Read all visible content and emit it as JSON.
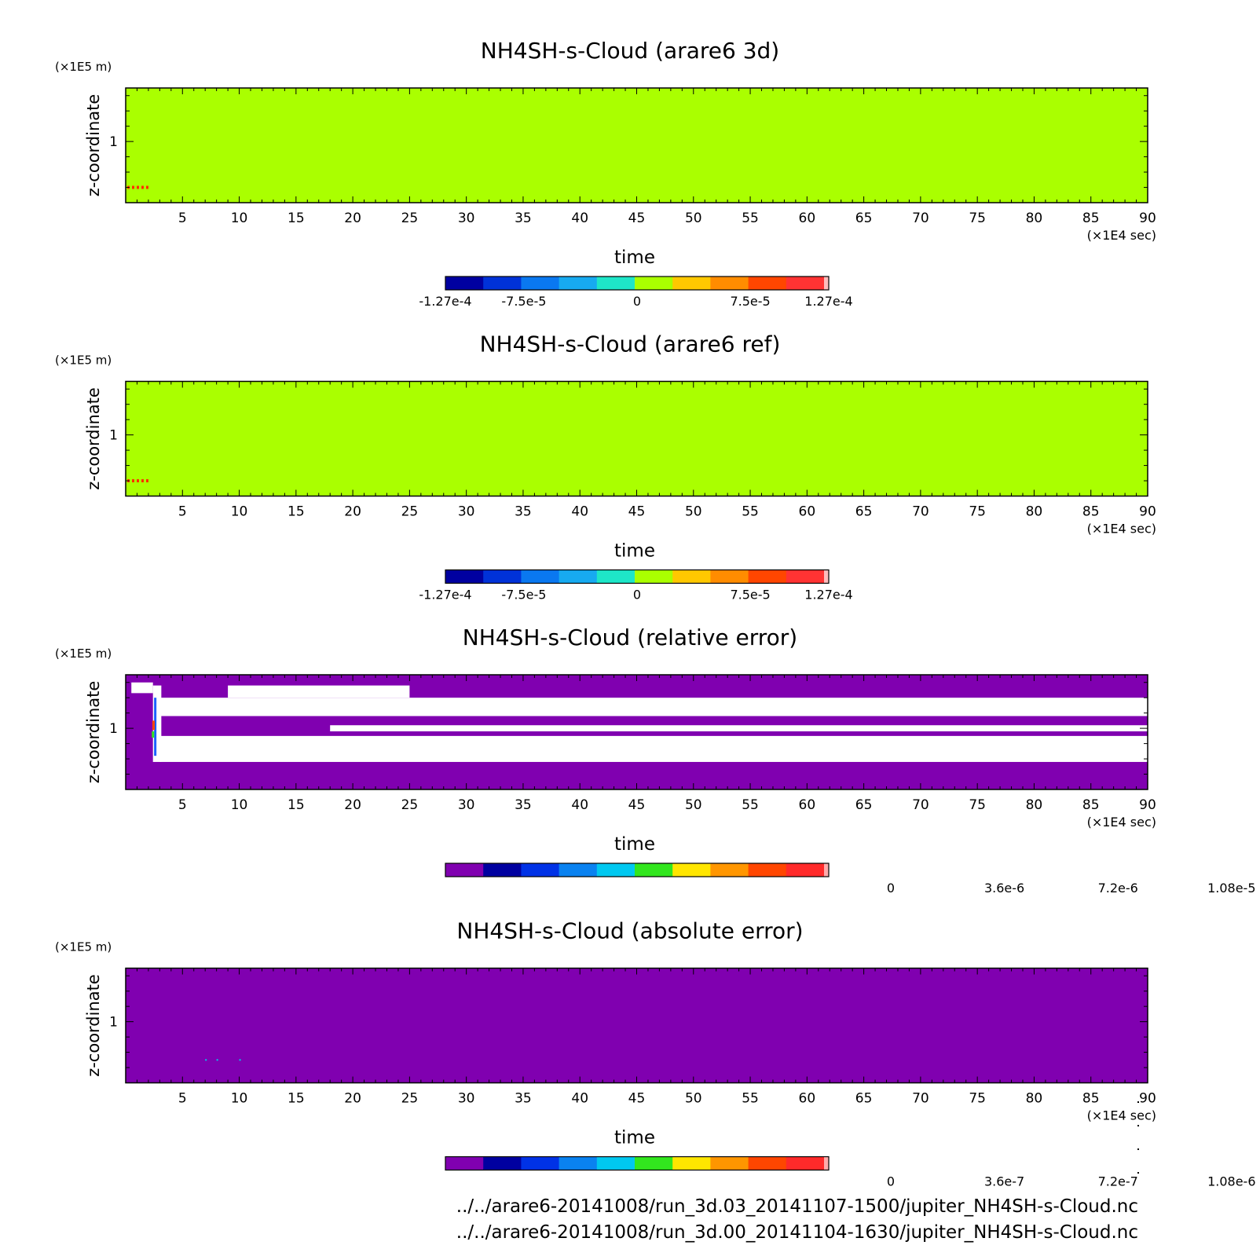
{
  "panels": [
    {
      "title": "NH4SH-s-Cloud (arare6 3d)",
      "y_unit": "(×1E5 m)",
      "y_label": "z-coordinate",
      "y_ticks": [
        "1"
      ],
      "x_label": "time",
      "x_unit": "(×1E4 sec)",
      "background": "#aaff00",
      "colorbar": {
        "colors": [
          "#0000a0",
          "#0032d8",
          "#0a78f0",
          "#17aaf0",
          "#1ee6c8",
          "#aaff00",
          "#ffc800",
          "#ff8c00",
          "#ff4600",
          "#ff3333"
        ],
        "end_color": "#ffbbbb",
        "labels": [
          "-1.27e-4",
          "-7.5e-5",
          "0",
          "7.5e-5",
          "1.27e-4"
        ]
      }
    },
    {
      "title": "NH4SH-s-Cloud (arare6 ref)",
      "y_unit": "(×1E5 m)",
      "y_label": "z-coordinate",
      "y_ticks": [
        "1"
      ],
      "x_label": "time",
      "x_unit": "(×1E4 sec)",
      "background": "#aaff00",
      "colorbar": {
        "colors": [
          "#0000a0",
          "#0032d8",
          "#0a78f0",
          "#17aaf0",
          "#1ee6c8",
          "#aaff00",
          "#ffc800",
          "#ff8c00",
          "#ff4600",
          "#ff3333"
        ],
        "end_color": "#ffbbbb",
        "labels": [
          "-1.27e-4",
          "-7.5e-5",
          "0",
          "7.5e-5",
          "1.27e-4"
        ]
      }
    },
    {
      "title": "NH4SH-s-Cloud (relative error)",
      "y_unit": "(×1E5 m)",
      "y_label": "z-coordinate",
      "y_ticks": [
        "1"
      ],
      "x_label": "time",
      "x_unit": "(×1E4 sec)",
      "background": "#8000b0",
      "colorbar": {
        "colors": [
          "#8000b0",
          "#0000a0",
          "#0032e6",
          "#0a82f0",
          "#00c8f0",
          "#32e61e",
          "#ffe600",
          "#ff9600",
          "#ff4600",
          "#ff2a2a"
        ],
        "end_color": "#ffaaaa",
        "labels": [
          "0",
          "3.6e-6",
          "7.2e-6",
          "1.08e-5"
        ]
      }
    },
    {
      "title": "NH4SH-s-Cloud (absolute error)",
      "y_unit": "(×1E5 m)",
      "y_label": "z-coordinate",
      "y_ticks": [
        "1"
      ],
      "x_label": "time",
      "x_unit": "(×1E4 sec)",
      "background": "#8000b0",
      "colorbar": {
        "colors": [
          "#8000b0",
          "#0000a0",
          "#0032e6",
          "#0a82f0",
          "#00c8f0",
          "#32e61e",
          "#ffe600",
          "#ff9600",
          "#ff4600",
          "#ff2a2a"
        ],
        "end_color": "#ffaaaa",
        "labels": [
          "0",
          "3.6e-7",
          "7.2e-7",
          "1.08e-6"
        ]
      }
    }
  ],
  "chart_data": [
    {
      "type": "heatmap",
      "title": "NH4SH-s-Cloud (arare6 3d)",
      "xlabel": "time",
      "xunit": "×1E4 sec",
      "ylabel": "z-coordinate",
      "yunit": "×1E5 m",
      "xlim": [
        0,
        90
      ],
      "x_ticks": [
        5,
        10,
        15,
        20,
        25,
        30,
        35,
        40,
        45,
        50,
        55,
        60,
        65,
        70,
        75,
        80,
        85,
        90
      ],
      "y_ticks": [
        1
      ],
      "colorbar_ticks": [
        -0.000127,
        -7.5e-05,
        0,
        7.5e-05,
        0.000127
      ],
      "dominant_value": 0,
      "features": [
        {
          "x_range": [
            0,
            2
          ],
          "y": 0.7,
          "value_sign": "positive"
        }
      ]
    },
    {
      "type": "heatmap",
      "title": "NH4SH-s-Cloud (arare6 ref)",
      "xlabel": "time",
      "xunit": "×1E4 sec",
      "ylabel": "z-coordinate",
      "yunit": "×1E5 m",
      "xlim": [
        0,
        90
      ],
      "x_ticks": [
        5,
        10,
        15,
        20,
        25,
        30,
        35,
        40,
        45,
        50,
        55,
        60,
        65,
        70,
        75,
        80,
        85,
        90
      ],
      "y_ticks": [
        1
      ],
      "colorbar_ticks": [
        -0.000127,
        -7.5e-05,
        0,
        7.5e-05,
        0.000127
      ],
      "dominant_value": 0,
      "features": [
        {
          "x_range": [
            0,
            2
          ],
          "y": 0.7,
          "value_sign": "positive"
        }
      ]
    },
    {
      "type": "heatmap",
      "title": "NH4SH-s-Cloud (relative error)",
      "xlabel": "time",
      "xunit": "×1E4 sec",
      "ylabel": "z-coordinate",
      "yunit": "×1E5 m",
      "xlim": [
        0,
        90
      ],
      "x_ticks": [
        5,
        10,
        15,
        20,
        25,
        30,
        35,
        40,
        45,
        50,
        55,
        60,
        65,
        70,
        75,
        80,
        85,
        90
      ],
      "y_ticks": [
        1
      ],
      "colorbar_ticks": [
        0,
        3.6e-06,
        7.2e-06,
        1.08e-05
      ],
      "dominant_value": 0,
      "missing_bands": [
        {
          "x_range": [
            9,
            25
          ],
          "y_range": [
            1.2,
            1.28
          ]
        },
        {
          "x_range": [
            3,
            90
          ],
          "y_range": [
            1.08,
            1.2
          ]
        },
        {
          "x_range": [
            18,
            90
          ],
          "y_range": [
            0.98,
            1.02
          ]
        },
        {
          "x_range": [
            3,
            90
          ],
          "y_range": [
            0.78,
            0.95
          ]
        }
      ]
    },
    {
      "type": "heatmap",
      "title": "NH4SH-s-Cloud (absolute error)",
      "xlabel": "time",
      "xunit": "×1E4 sec",
      "ylabel": "z-coordinate",
      "yunit": "×1E5 m",
      "xlim": [
        0,
        90
      ],
      "x_ticks": [
        5,
        10,
        15,
        20,
        25,
        30,
        35,
        40,
        45,
        50,
        55,
        60,
        65,
        70,
        75,
        80,
        85,
        90
      ],
      "y_ticks": [
        1
      ],
      "colorbar_ticks": [
        0,
        3.6e-07,
        7.2e-07,
        1.08e-06
      ],
      "dominant_value": 0
    }
  ],
  "files": [
    "../../arare6-20141008/run_3d.03_20141107-1500/jupiter_NH4SH-s-Cloud.nc",
    "../../arare6-20141008/run_3d.00_20141104-1630/jupiter_NH4SH-s-Cloud.nc"
  ]
}
